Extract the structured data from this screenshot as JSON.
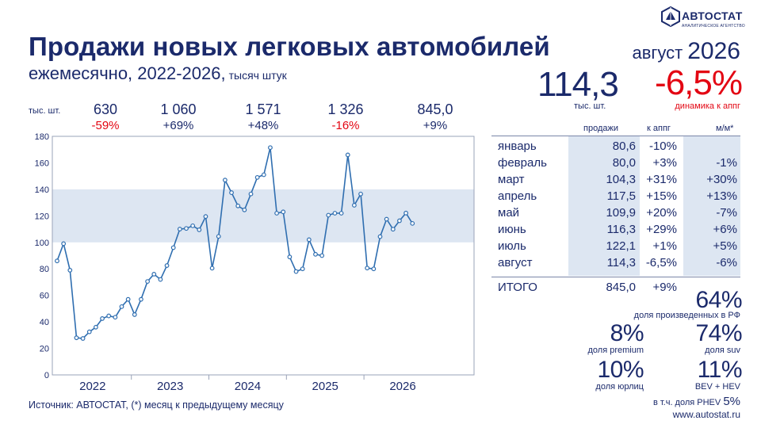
{
  "header": {
    "title": "Продажи новых легковых автомобилей",
    "subtitle": "ежемесячно, 2022-2026,",
    "subtitle_unit": "тысяч штук",
    "logo_name": "АВТОСТАТ",
    "logo_tagline": "АНАЛИТИЧЕСКОЕ АГЕНТСТВО"
  },
  "period": {
    "month": "август",
    "year": "2026"
  },
  "headline": {
    "value": "114,3",
    "unit": "тыс. шт.",
    "dynamics": "-6,5%",
    "dynamics_label": "динамика к аппг"
  },
  "yearly": {
    "unit_label": "тыс. шт.",
    "items": [
      {
        "total": "630",
        "change": "-59%",
        "negative": true
      },
      {
        "total": "1 060",
        "change": "+69%",
        "negative": false
      },
      {
        "total": "1 571",
        "change": "+48%",
        "negative": false
      },
      {
        "total": "1 326",
        "change": "-16%",
        "negative": true
      },
      {
        "total": "845,0",
        "change": "+9%",
        "negative": false
      }
    ]
  },
  "chart_data": {
    "type": "line",
    "ylim": [
      0,
      180
    ],
    "yticks": [
      "0",
      "20",
      "40",
      "60",
      "80",
      "100",
      "120",
      "140",
      "160",
      "180"
    ],
    "band": [
      100,
      140
    ],
    "grid": false,
    "x_year_labels": [
      "2022",
      "2023",
      "2024",
      "2025",
      "2026"
    ],
    "series": [
      {
        "values": [
          86,
          99,
          79,
          28,
          27.5,
          32.5,
          36,
          42.5,
          44.5,
          43.5,
          51.5,
          57,
          45.5,
          57,
          70.5,
          76,
          72,
          82.5,
          96,
          110,
          110.5,
          112.5,
          109.5,
          119.5,
          80.5,
          104.5,
          147,
          137.5,
          127.5,
          124.5,
          136.5,
          149,
          151,
          171.5,
          122,
          123,
          89,
          78,
          80,
          102,
          91,
          90,
          120.5,
          122,
          122,
          166,
          128,
          136.5,
          80.6,
          80.0,
          104.3,
          117.5,
          109.9,
          116.3,
          122.1,
          114.3
        ]
      }
    ]
  },
  "table": {
    "headers": [
      "продажи",
      "к аппг",
      "м/м*"
    ],
    "rows": [
      {
        "month": "январь",
        "sales": "80,6",
        "yoy": "-10%",
        "yoy_neg": true,
        "mom": "",
        "mom_neg": false
      },
      {
        "month": "февраль",
        "sales": "80,0",
        "yoy": "+3%",
        "yoy_neg": false,
        "mom": "-1%",
        "mom_neg": true
      },
      {
        "month": "март",
        "sales": "104,3",
        "yoy": "+31%",
        "yoy_neg": false,
        "mom": "+30%",
        "mom_neg": false
      },
      {
        "month": "апрель",
        "sales": "117,5",
        "yoy": "+15%",
        "yoy_neg": false,
        "mom": "+13%",
        "mom_neg": false
      },
      {
        "month": "май",
        "sales": "109,9",
        "yoy": "+20%",
        "yoy_neg": false,
        "mom": "-7%",
        "mom_neg": true
      },
      {
        "month": "июнь",
        "sales": "116,3",
        "yoy": "+29%",
        "yoy_neg": false,
        "mom": "+6%",
        "mom_neg": false
      },
      {
        "month": "июль",
        "sales": "122,1",
        "yoy": "+1%",
        "yoy_neg": false,
        "mom": "+5%",
        "mom_neg": false
      },
      {
        "month": "август",
        "sales": "114,3",
        "yoy": "-6,5%",
        "yoy_neg": true,
        "mom": "-6%",
        "mom_neg": true
      }
    ],
    "total": {
      "label": "ИТОГО",
      "sales": "845,0",
      "yoy": "+9%"
    }
  },
  "stats": {
    "local_share": {
      "value": "64%",
      "label": "доля произведенных в РФ"
    },
    "premium": {
      "value": "8%",
      "label": "доля premium"
    },
    "suv": {
      "value": "74%",
      "label": "доля suv"
    },
    "legal": {
      "value": "10%",
      "label": "доля юрлиц"
    },
    "ev": {
      "value": "11%",
      "label": "BEV + HEV"
    },
    "phev_prefix": "в т.ч. доля PHEV",
    "phev_value": "5%"
  },
  "footer": {
    "source": "Источник: АВТОСТАТ, (*) месяц к предыдущему месяцу",
    "site": "www.autostat.ru"
  },
  "colors": {
    "navy": "#1b2a6b",
    "red": "#e30613",
    "line": "#2f6eb0",
    "band": "#dde6f2"
  }
}
